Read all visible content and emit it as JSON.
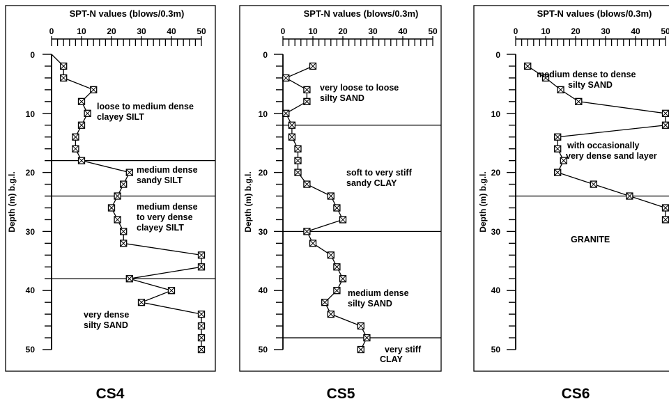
{
  "chart_data": [
    {
      "type": "scatter",
      "label": "CS4",
      "title": "SPT-N values (blows/0.3m)",
      "ylabel": "Depth (m) b.g.l.",
      "xlim": [
        0,
        50
      ],
      "ylim": [
        0,
        50
      ],
      "x_ticks": [
        "0",
        "10",
        "20",
        "30",
        "40",
        "50"
      ],
      "y_ticks": [
        "0",
        "10",
        "20",
        "30",
        "40",
        "50"
      ],
      "series": [
        {
          "x": [
            0,
            4,
            4,
            14,
            10,
            12,
            10,
            8,
            8,
            10,
            26,
            24,
            22,
            20,
            22,
            24,
            24,
            50,
            50,
            26,
            40,
            30,
            50,
            50,
            50,
            50
          ],
          "y": [
            0,
            2,
            4,
            6,
            8,
            10,
            12,
            14,
            16,
            18,
            20,
            22,
            24,
            26,
            28,
            30,
            32,
            34,
            36,
            38,
            40,
            42,
            44,
            46,
            48,
            50
          ]
        }
      ],
      "boundaries": [
        18,
        24,
        38
      ],
      "annotations": [
        {
          "lines": [
            "loose to medium dense",
            "clayey SILT"
          ]
        },
        {
          "lines": [
            "medium dense",
            "sandy SILT"
          ]
        },
        {
          "lines": [
            "medium dense",
            "to very dense",
            "clayey SILT"
          ]
        },
        {
          "lines": [
            "very dense",
            "silty SAND"
          ]
        }
      ]
    },
    {
      "type": "scatter",
      "label": "CS5",
      "title": "SPT-N values (blows/0.3m)",
      "ylabel": "Depth (m) b.g.l.",
      "xlim": [
        0,
        50
      ],
      "ylim": [
        0,
        50
      ],
      "x_ticks": [
        "0",
        "10",
        "20",
        "30",
        "40",
        "50"
      ],
      "y_ticks": [
        "0",
        "10",
        "20",
        "30",
        "40",
        "50"
      ],
      "series": [
        {
          "x": [
            10,
            1,
            8,
            8,
            1,
            3,
            3,
            5,
            5,
            5,
            8,
            16,
            18,
            20,
            8,
            10,
            16,
            18,
            20,
            18,
            14,
            16,
            26,
            28,
            26
          ],
          "y": [
            2,
            4,
            6,
            8,
            10,
            12,
            14,
            16,
            18,
            20,
            22,
            24,
            26,
            28,
            30,
            32,
            34,
            36,
            38,
            40,
            42,
            44,
            46,
            48,
            50
          ]
        }
      ],
      "boundaries": [
        12,
        30,
        48
      ],
      "annotations": [
        {
          "lines": [
            "very loose to loose",
            "silty SAND"
          ]
        },
        {
          "lines": [
            "soft to very stiff",
            "sandy CLAY"
          ]
        },
        {
          "lines": [
            "medium dense",
            "silty SAND"
          ]
        },
        {
          "lines": [
            "very stiff",
            "CLAY"
          ]
        }
      ]
    },
    {
      "type": "scatter",
      "label": "CS6",
      "title": "SPT-N values (blows/0.3m)",
      "ylabel": "Depth (m) b.g.l.",
      "xlim": [
        0,
        50
      ],
      "ylim": [
        0,
        50
      ],
      "x_ticks": [
        "0",
        "10",
        "20",
        "30",
        "40",
        "50"
      ],
      "y_ticks": [
        "0",
        "10",
        "20",
        "30",
        "40",
        "50"
      ],
      "series": [
        {
          "x": [
            4,
            10,
            15,
            21,
            50,
            50,
            14,
            14,
            16,
            14,
            26,
            38,
            50,
            50
          ],
          "y": [
            2,
            4,
            6,
            8,
            10,
            12,
            14,
            16,
            18,
            20,
            22,
            24,
            26,
            28
          ]
        }
      ],
      "boundaries": [
        24
      ],
      "annotations": [
        {
          "lines": [
            "medium dense to dense",
            "silty SAND"
          ]
        },
        {
          "lines": [
            "with occasionally",
            "very dense sand layer"
          ]
        },
        {
          "lines": [
            "GRANITE"
          ]
        }
      ]
    }
  ]
}
